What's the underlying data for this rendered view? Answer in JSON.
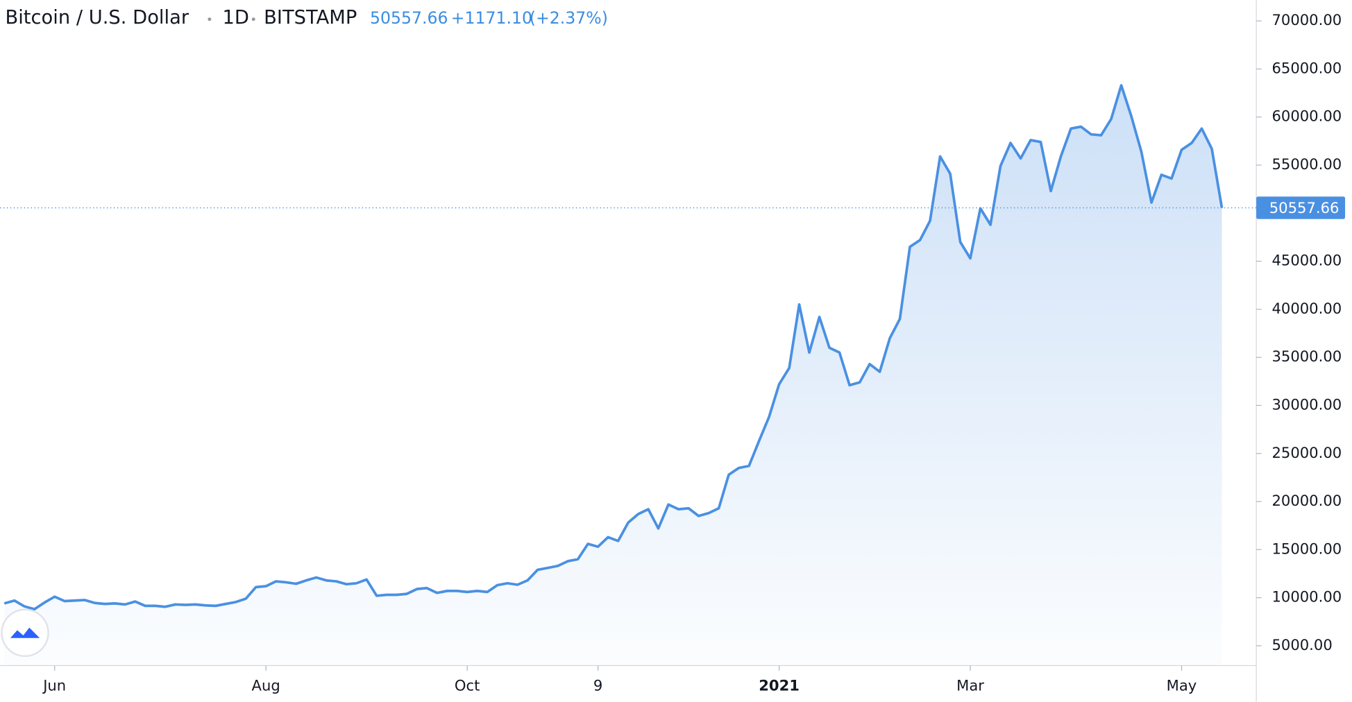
{
  "header": {
    "symbol": "Bitcoin / U.S. Dollar",
    "interval": "1D",
    "exchange": "BITSTAMP",
    "change": "+1171.10",
    "change_pct": "(+2.37%)"
  },
  "chart_data": {
    "type": "area",
    "color": "#4a90e2",
    "categories": [
      null,
      null,
      null,
      null,
      null,
      "Jun",
      null,
      null,
      null,
      null,
      null,
      null,
      null,
      null,
      null,
      null,
      null,
      null,
      null,
      null,
      null,
      null,
      null,
      null,
      null,
      null,
      "Aug",
      null,
      null,
      null,
      null,
      null,
      null,
      null,
      null,
      null,
      null,
      null,
      null,
      null,
      null,
      null,
      null,
      null,
      null,
      null,
      "Oct",
      null,
      null,
      null,
      null,
      null,
      null,
      null,
      null,
      null,
      null,
      null,
      null,
      "9",
      null,
      null,
      null,
      null,
      null,
      null,
      null,
      null,
      null,
      null,
      null,
      null,
      null,
      null,
      null,
      null,
      null,
      "2021",
      null,
      null,
      null,
      null,
      null,
      null,
      null,
      null,
      null,
      null,
      null,
      null,
      null,
      null,
      null,
      null,
      null,
      null,
      "Mar",
      null,
      null,
      null,
      null,
      null,
      null,
      null,
      null,
      null,
      null,
      null,
      null,
      null,
      null,
      null,
      null,
      null,
      null,
      null,
      null,
      "May",
      null,
      null,
      null,
      null
    ],
    "values": [
      9400,
      9700,
      9100,
      8800,
      9500,
      10100,
      9650,
      9700,
      9750,
      9450,
      9350,
      9400,
      9300,
      9600,
      9150,
      9150,
      9050,
      9300,
      9250,
      9300,
      9200,
      9150,
      9350,
      9550,
      9900,
      11100,
      11200,
      11700,
      11600,
      11450,
      11800,
      12100,
      11800,
      11700,
      11400,
      11500,
      11900,
      10200,
      10300,
      10300,
      10400,
      10900,
      11000,
      10500,
      10700,
      10700,
      10600,
      10700,
      10600,
      11300,
      11500,
      11350,
      11800,
      12900,
      13100,
      13300,
      13800,
      14000,
      15600,
      15300,
      16300,
      15900,
      17800,
      18700,
      19200,
      17200,
      19700,
      19200,
      19300,
      18500,
      18800,
      19300,
      22800,
      23500,
      23700,
      26300,
      28800,
      32200,
      33900,
      40500,
      35500,
      39200,
      36000,
      35500,
      32100,
      32400,
      34300,
      33500,
      37000,
      39000,
      46500,
      47200,
      49200,
      55900,
      54100,
      47000,
      45300,
      50500,
      48800,
      54900,
      57300,
      55700,
      57600,
      57400,
      52300,
      55900,
      58800,
      59000,
      58200,
      58100,
      59800,
      63300,
      60100,
      56400,
      51100,
      54000,
      53600,
      56600,
      57300,
      58800,
      56700,
      50557.66
    ],
    "ylim": [
      2940,
      72150
    ],
    "yticks": [
      {
        "value": 5000,
        "label": "5000.00"
      },
      {
        "value": 10000,
        "label": "10000.00"
      },
      {
        "value": 15000,
        "label": "15000.00"
      },
      {
        "value": 20000,
        "label": "20000.00"
      },
      {
        "value": 25000,
        "label": "25000.00"
      },
      {
        "value": 30000,
        "label": "30000.00"
      },
      {
        "value": 35000,
        "label": "35000.00"
      },
      {
        "value": 40000,
        "label": "40000.00"
      },
      {
        "value": 45000,
        "label": "45000.00"
      },
      {
        "value": 55000,
        "label": "55000.00"
      },
      {
        "value": 60000,
        "label": "60000.00"
      },
      {
        "value": 65000,
        "label": "65000.00"
      },
      {
        "value": 70000,
        "label": "70000.00"
      }
    ]
  }
}
